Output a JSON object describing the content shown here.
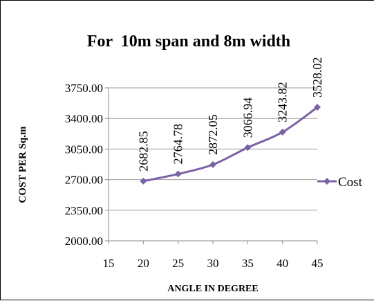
{
  "chart_data": {
    "type": "line",
    "title": "For  10m span and 8m width",
    "xlabel": "ANGLE IN DEGREE",
    "ylabel": "COST PER Sq.m",
    "xlim": [
      15,
      45
    ],
    "x_ticks": [
      "15",
      "20",
      "25",
      "30",
      "35",
      "40",
      "45"
    ],
    "ylim": [
      2000,
      3750
    ],
    "y_ticks": [
      "2000.00",
      "2350.00",
      "2700.00",
      "3050.00",
      "3400.00",
      "3750.00"
    ],
    "grid": "horizontal",
    "legend": "right",
    "series": [
      {
        "name": "Cost",
        "color": "#7b62a6",
        "x": [
          20,
          25,
          30,
          35,
          40,
          45
        ],
        "values": [
          2682.85,
          2764.78,
          2872.05,
          3066.94,
          3243.82,
          3528.02
        ],
        "labels": [
          "2682.85",
          "2764.78",
          "2872.05",
          "3066.94",
          "3243.82",
          "3528.02"
        ]
      }
    ]
  }
}
